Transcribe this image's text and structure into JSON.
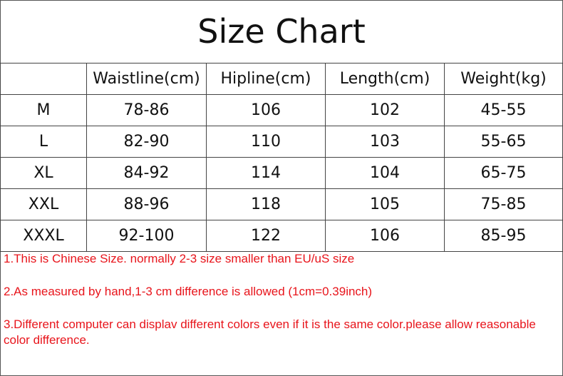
{
  "title": "Size Chart",
  "table": {
    "headers": [
      "",
      "Waistline(cm)",
      "Hipline(cm)",
      "Length(cm)",
      "Weight(kg)"
    ],
    "rows": [
      [
        "M",
        "78-86",
        "106",
        "102",
        "45-55"
      ],
      [
        "L",
        "82-90",
        "110",
        "103",
        "55-65"
      ],
      [
        "XL",
        "84-92",
        "114",
        "104",
        "65-75"
      ],
      [
        "XXL",
        "88-96",
        "118",
        "105",
        "75-85"
      ],
      [
        "XXXL",
        "92-100",
        "122",
        "106",
        "85-95"
      ]
    ]
  },
  "notes": [
    "1.This is Chinese Size. normally 2-3 size smaller than EU/uS size",
    "2.As measured by hand,1-3 cm difference is allowed (1cm=0.39inch)",
    "3.Different computer can displav different colors even if it is the same color.please allow reasonable color difference."
  ],
  "colors": {
    "notes": "#e8141b",
    "border": "#444444"
  }
}
